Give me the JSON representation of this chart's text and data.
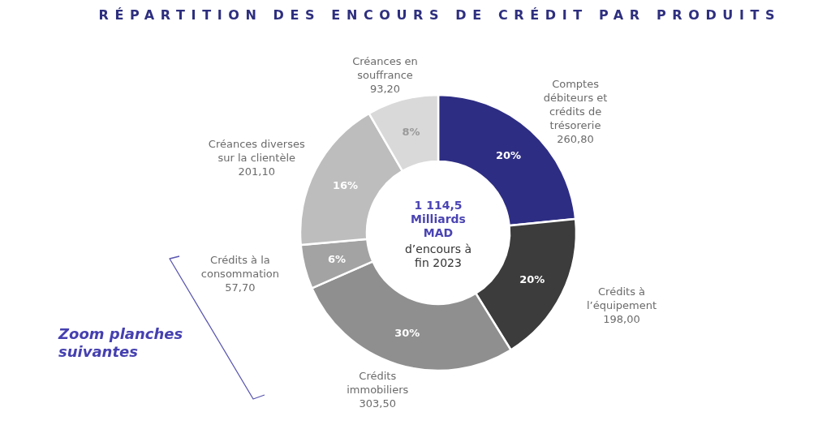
{
  "chart_data": {
    "type": "donut",
    "title": "RÉPARTITION DES ENCOURS DE CRÉDIT PAR PRODUITS",
    "categories": [
      "Comptes débiteurs et crédits de trésorerie",
      "Crédits à l’équipement",
      "Crédits immobiliers",
      "Crédits à la consommation",
      "Créances diverses sur la clientèle",
      "Créances en souffrance"
    ],
    "values": [
      260.8,
      198.0,
      303.5,
      57.7,
      201.1,
      93.2
    ],
    "colors": [
      "#2e2d84",
      "#3c3c3c",
      "#8f8f8f",
      "#a3a3a3",
      "#bdbdbd",
      "#d9d9d9"
    ],
    "value_labels": [
      "260,80",
      "198,00",
      "303,50",
      "57,70",
      "201,10",
      "93,20"
    ],
    "annotations": [
      "1 114,5 Milliards MAD",
      "d’encours à fin 2023",
      "Zoom planches suivantes",
      {
        "text": "20%",
        "x": "Comptes débiteurs et crédits de trésorerie"
      },
      {
        "text": "20%",
        "x": "Crédits à l’équipement"
      },
      {
        "text": "30%",
        "x": "Crédits immobiliers"
      },
      {
        "text": "6%",
        "x": "Crédits à la consommation"
      },
      {
        "text": "16%",
        "x": "Créances diverses sur la clientèle"
      },
      {
        "text": "8%",
        "x": "Créances en souffrance"
      }
    ]
  }
}
